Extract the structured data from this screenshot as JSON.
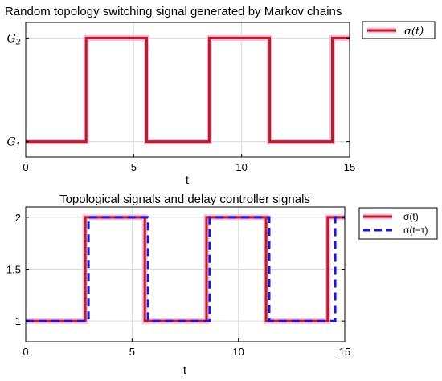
{
  "chart_data": [
    {
      "type": "line",
      "title": "Random topology switching signal generated by Markov chains",
      "xlabel": "t",
      "ylabel": "",
      "xlim": [
        0,
        15
      ],
      "ylim": [
        0.85,
        2.15
      ],
      "x_ticks": [
        "0",
        "5",
        "10",
        "15"
      ],
      "y_ticks": [
        {
          "value": 1,
          "base": "G",
          "sub": "1"
        },
        {
          "value": 2,
          "base": "G",
          "sub": "2"
        }
      ],
      "grid": true,
      "legend_position": "outside-right-top",
      "series": [
        {
          "name": "σ(t)",
          "color": "#b22222",
          "halo": "#ffb6e1",
          "style": "solid",
          "points": [
            [
              0,
              1
            ],
            [
              2.8,
              1
            ],
            [
              2.8,
              2
            ],
            [
              5.6,
              2
            ],
            [
              5.6,
              1
            ],
            [
              8.5,
              1
            ],
            [
              8.5,
              2
            ],
            [
              11.3,
              2
            ],
            [
              11.3,
              1
            ],
            [
              14.2,
              1
            ],
            [
              14.2,
              2
            ],
            [
              15,
              2
            ]
          ]
        }
      ]
    },
    {
      "type": "line",
      "title": "Topological signals and delay controller signals",
      "xlabel": "t",
      "ylabel": "",
      "xlim": [
        0,
        15
      ],
      "ylim": [
        0.8,
        2.1
      ],
      "x_ticks": [
        "0",
        "5",
        "10",
        "15"
      ],
      "y_ticks": [
        "1",
        "1.5",
        "2"
      ],
      "grid": true,
      "legend_position": "outside-right-top",
      "series": [
        {
          "name": "σ(t)",
          "color": "#b22222",
          "halo": "#ffb6e1",
          "style": "solid",
          "points": [
            [
              0,
              1
            ],
            [
              2.8,
              1
            ],
            [
              2.8,
              2
            ],
            [
              5.6,
              2
            ],
            [
              5.6,
              1
            ],
            [
              8.5,
              1
            ],
            [
              8.5,
              2
            ],
            [
              11.3,
              2
            ],
            [
              11.3,
              1
            ],
            [
              14.2,
              1
            ],
            [
              14.2,
              2
            ],
            [
              15,
              2
            ]
          ]
        },
        {
          "name": "σ(t−τ)",
          "color": "#1a1acc",
          "style": "dashed",
          "points": [
            [
              0,
              1
            ],
            [
              2.95,
              1
            ],
            [
              2.95,
              2
            ],
            [
              5.75,
              2
            ],
            [
              5.75,
              1
            ],
            [
              8.65,
              1
            ],
            [
              8.65,
              2
            ],
            [
              11.45,
              2
            ],
            [
              11.45,
              1
            ],
            [
              14.55,
              1
            ],
            [
              14.55,
              2
            ],
            [
              15,
              2
            ]
          ]
        }
      ]
    }
  ]
}
